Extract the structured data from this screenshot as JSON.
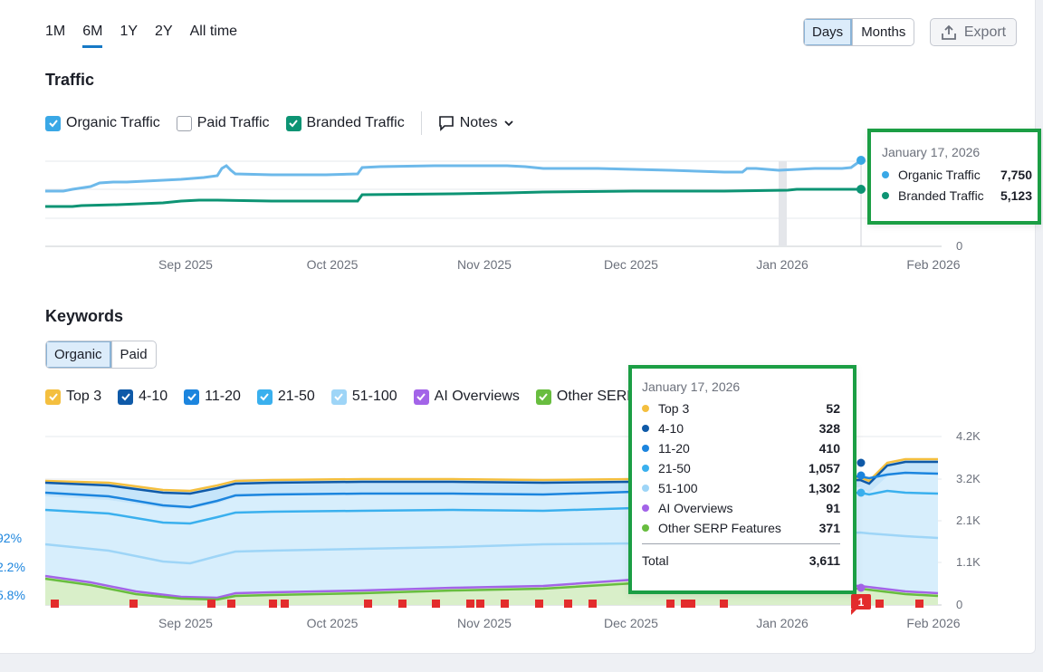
{
  "period_tabs": [
    {
      "label": "1M",
      "active": false
    },
    {
      "label": "6M",
      "active": true
    },
    {
      "label": "1Y",
      "active": false
    },
    {
      "label": "2Y",
      "active": false
    },
    {
      "label": "All time",
      "active": false
    }
  ],
  "granularity": {
    "days": "Days",
    "months": "Months",
    "selected": "Days"
  },
  "export_label": "Export",
  "traffic": {
    "title": "Traffic",
    "legend": [
      {
        "label": "Organic Traffic",
        "checked": true,
        "color": "#3aa8e6"
      },
      {
        "label": "Paid Traffic",
        "checked": false,
        "color": "#9ea3ad"
      },
      {
        "label": "Branded Traffic",
        "checked": true,
        "color": "#0d9474"
      }
    ],
    "notes_label": "Notes",
    "tooltip": {
      "date": "January 17, 2026",
      "rows": [
        {
          "label": "Organic Traffic",
          "value": "7,750",
          "color": "#3aa8e6"
        },
        {
          "label": "Branded Traffic",
          "value": "5,123",
          "color": "#0d9474"
        }
      ]
    },
    "x_ticks": [
      "Sep 2025",
      "Oct 2025",
      "Nov 2025",
      "Dec 2025",
      "Jan 2026",
      "Feb 2026"
    ],
    "y_ticks": [
      "0"
    ]
  },
  "keywords": {
    "title": "Keywords",
    "tabs": [
      {
        "label": "Organic",
        "active": true
      },
      {
        "label": "Paid",
        "active": false
      }
    ],
    "legend": [
      {
        "label": "Top 3",
        "color": "#f4bf3f"
      },
      {
        "label": "4-10",
        "color": "#0f5aa8"
      },
      {
        "label": "11-20",
        "color": "#1c85de"
      },
      {
        "label": "21-50",
        "color": "#3ab0ee"
      },
      {
        "label": "51-100",
        "color": "#9ed5f7"
      },
      {
        "label": "AI Overviews",
        "color": "#a364e8"
      },
      {
        "label": "Other SERP",
        "color": "#68bd3f"
      }
    ],
    "tooltip": {
      "date": "January 17, 2026",
      "rows": [
        {
          "label": "Top 3",
          "value": "52",
          "color": "#f4bf3f"
        },
        {
          "label": "4-10",
          "value": "328",
          "color": "#0f5aa8"
        },
        {
          "label": "11-20",
          "value": "410",
          "color": "#1c85de"
        },
        {
          "label": "21-50",
          "value": "1,057",
          "color": "#3ab0ee"
        },
        {
          "label": "51-100",
          "value": "1,302",
          "color": "#9ed5f7"
        },
        {
          "label": "AI Overviews",
          "value": "91",
          "color": "#a364e8"
        },
        {
          "label": "Other SERP Features",
          "value": "371",
          "color": "#68bd3f"
        }
      ],
      "total_label": "Total",
      "total_value": "3,611"
    },
    "y_ticks": [
      "4.2K",
      "3.2K",
      "2.1K",
      "1.1K",
      "0"
    ],
    "x_ticks": [
      "Sep 2025",
      "Oct 2025",
      "Nov 2025",
      "Dec 2025",
      "Jan 2026",
      "Feb 2026"
    ],
    "left_axis_labels": [
      "92%",
      "2.2%",
      "5.8%"
    ],
    "note_badge": "1"
  }
}
